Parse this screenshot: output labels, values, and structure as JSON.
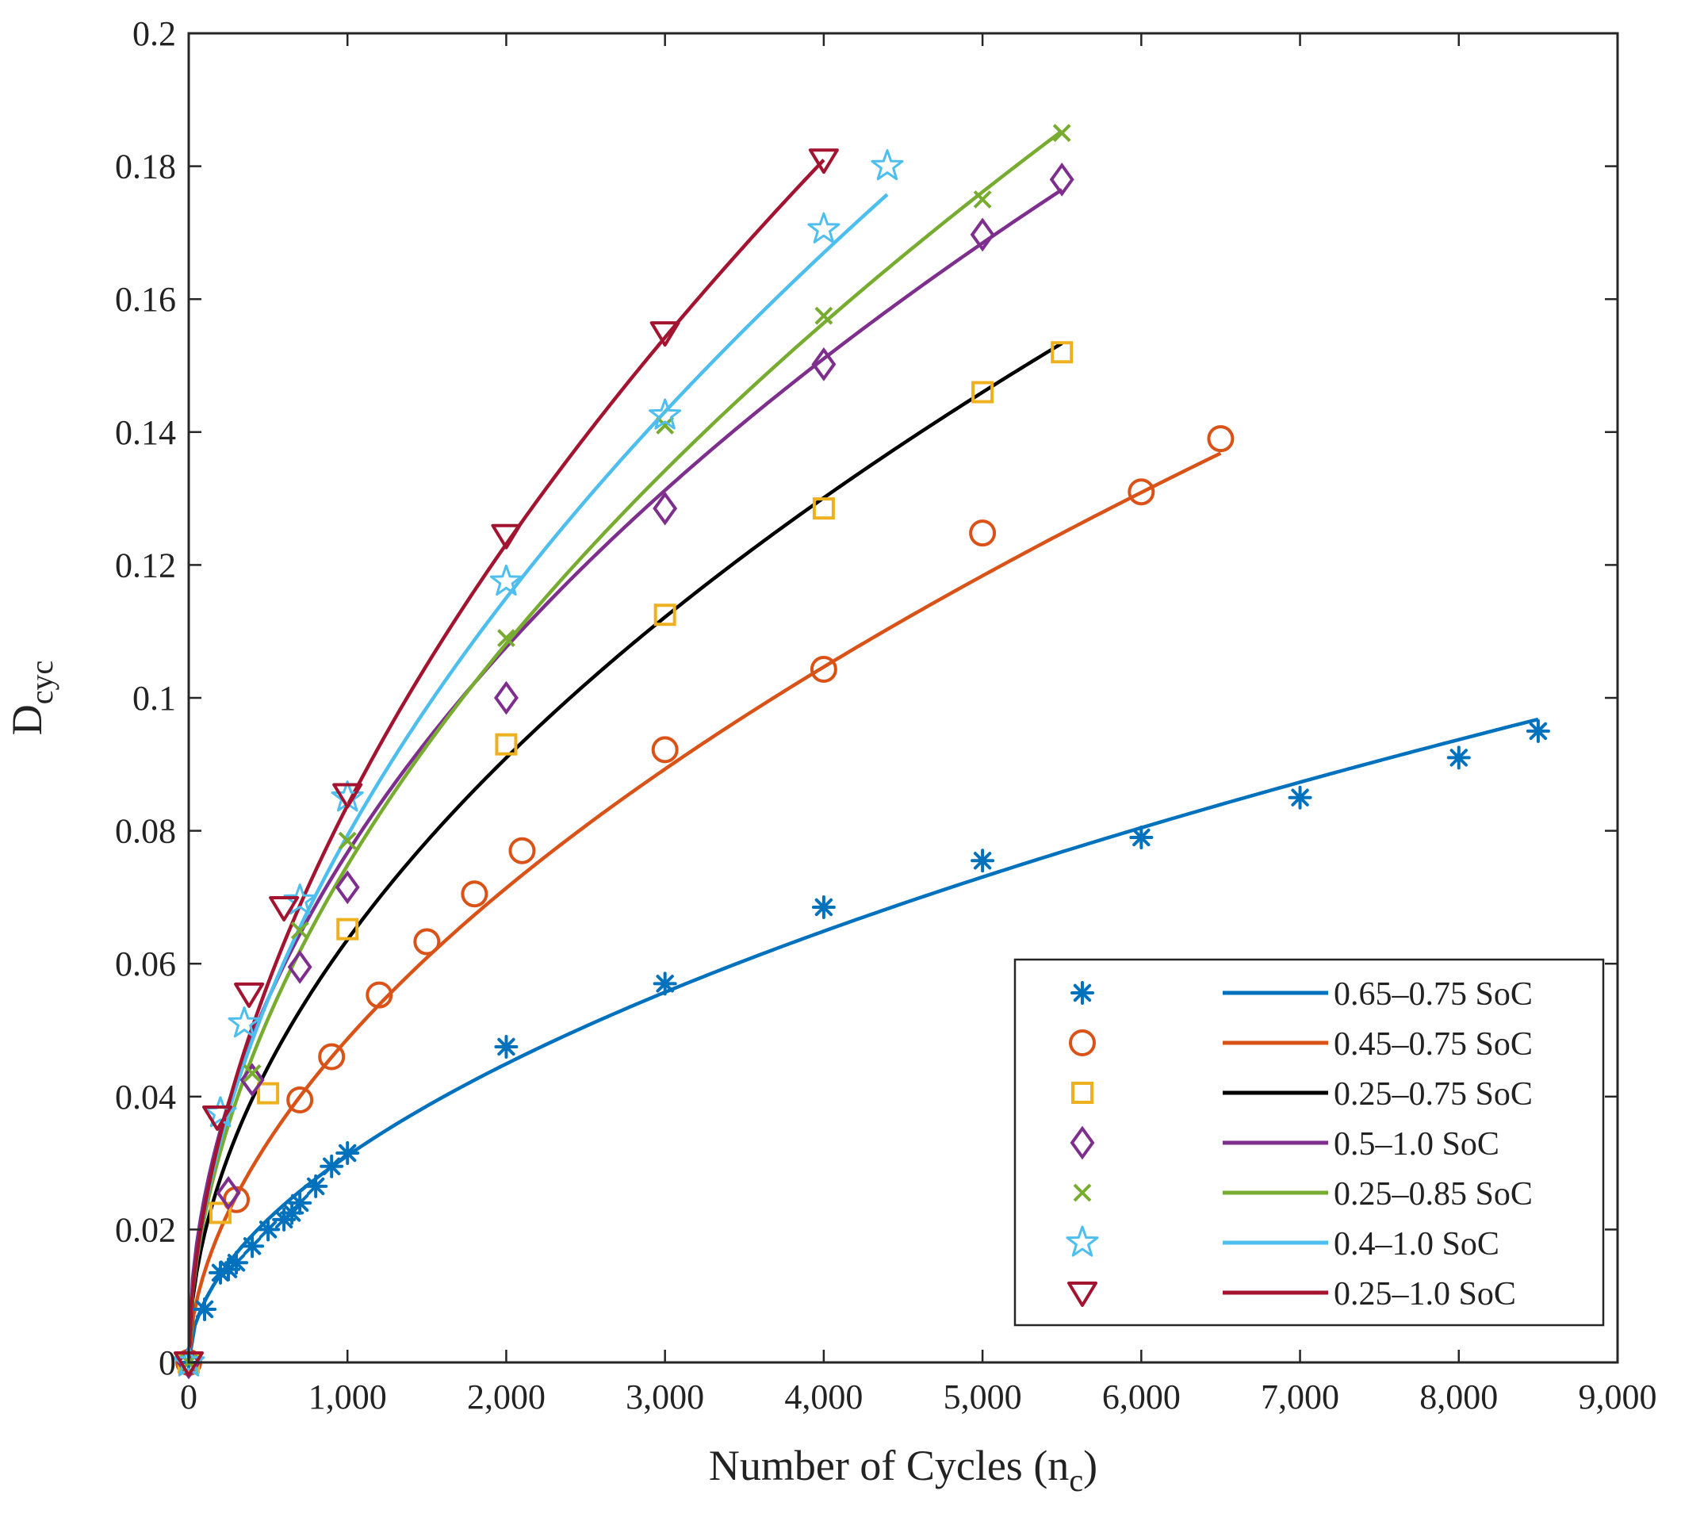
{
  "chart_data": {
    "type": "scatter",
    "title": "",
    "xlabel": "Number of Cycles (n",
    "xlabel_sub": "c",
    "xlabel_close": ")",
    "ylabel": "D",
    "ylabel_sub": "cyc",
    "xlim": [
      0,
      9000
    ],
    "ylim": [
      0,
      0.2
    ],
    "xticks": [
      0,
      1000,
      2000,
      3000,
      4000,
      5000,
      6000,
      7000,
      8000,
      9000
    ],
    "xtick_labels": [
      "0",
      "1,000",
      "2,000",
      "3,000",
      "4,000",
      "5,000",
      "6,000",
      "7,000",
      "8,000",
      "9,000"
    ],
    "yticks": [
      0,
      0.02,
      0.04,
      0.06,
      0.08,
      0.1,
      0.12,
      0.14,
      0.16,
      0.18,
      0.2
    ],
    "ytick_labels": [
      "0",
      "0.02",
      "0.04",
      "0.06",
      "0.08",
      "0.1",
      "0.12",
      "0.14",
      "0.16",
      "0.18",
      "0.2"
    ],
    "grid": false,
    "legend_position": "bottom-right",
    "series": [
      {
        "name": "0.65–0.75 SoC",
        "color": "#0072BD",
        "marker": "asterisk",
        "fit": {
          "a": 0.000798,
          "b": 0.5303,
          "xmax": 8500
        },
        "points": [
          [
            0,
            0
          ],
          [
            100,
            0.008
          ],
          [
            200,
            0.0135
          ],
          [
            250,
            0.014
          ],
          [
            300,
            0.015
          ],
          [
            400,
            0.0175
          ],
          [
            500,
            0.02
          ],
          [
            600,
            0.0215
          ],
          [
            650,
            0.0225
          ],
          [
            700,
            0.024
          ],
          [
            800,
            0.0265
          ],
          [
            900,
            0.0295
          ],
          [
            1000,
            0.0315
          ],
          [
            2000,
            0.0475
          ],
          [
            3000,
            0.057
          ],
          [
            4000,
            0.0685
          ],
          [
            5000,
            0.0755
          ],
          [
            6000,
            0.079
          ],
          [
            7000,
            0.085
          ],
          [
            8000,
            0.091
          ],
          [
            8500,
            0.095
          ]
        ]
      },
      {
        "name": "0.45–0.75 SoC",
        "color": "#D95319",
        "marker": "circle",
        "fit": {
          "a": 0.001075,
          "b": 0.552,
          "xmax": 6500
        },
        "points": [
          [
            0,
            0
          ],
          [
            300,
            0.0245
          ],
          [
            700,
            0.0395
          ],
          [
            900,
            0.046
          ],
          [
            1200,
            0.0553
          ],
          [
            1500,
            0.0633
          ],
          [
            1800,
            0.0705
          ],
          [
            2100,
            0.077
          ],
          [
            3000,
            0.0922
          ],
          [
            4000,
            0.1043
          ],
          [
            5000,
            0.1248
          ],
          [
            6000,
            0.131
          ],
          [
            6500,
            0.139
          ]
        ]
      },
      {
        "name": "0.25–0.75 SoC",
        "color": "#EDB120",
        "line_color": "#000000",
        "marker": "square",
        "fit": {
          "a": 0.0018,
          "b": 0.5161,
          "xmax": 5500
        },
        "points": [
          [
            0,
            0
          ],
          [
            200,
            0.0225
          ],
          [
            500,
            0.0405
          ],
          [
            1000,
            0.0652
          ],
          [
            2000,
            0.093
          ],
          [
            3000,
            0.1125
          ],
          [
            4000,
            0.1285
          ],
          [
            5000,
            0.146
          ],
          [
            5500,
            0.152
          ]
        ]
      },
      {
        "name": "0.5–1.0 SoC",
        "color": "#7E2F8E",
        "marker": "diamond",
        "fit": {
          "a": 0.002625,
          "b": 0.4886,
          "xmax": 5500
        },
        "points": [
          [
            0,
            0
          ],
          [
            250,
            0.0255
          ],
          [
            400,
            0.0425
          ],
          [
            700,
            0.0595
          ],
          [
            1000,
            0.0715
          ],
          [
            2000,
            0.1
          ],
          [
            3000,
            0.1285
          ],
          [
            4000,
            0.1502
          ],
          [
            5000,
            0.1697
          ],
          [
            5500,
            0.178
          ]
        ]
      },
      {
        "name": "0.25–0.85 SoC",
        "color": "#77AC30",
        "marker": "cross",
        "fit": {
          "a": 0.001895,
          "b": 0.5321,
          "xmax": 5500
        },
        "points": [
          [
            0,
            0
          ],
          [
            400,
            0.0435
          ],
          [
            700,
            0.065
          ],
          [
            1000,
            0.0785
          ],
          [
            2000,
            0.109
          ],
          [
            3000,
            0.141
          ],
          [
            4000,
            0.1575
          ],
          [
            5000,
            0.175
          ],
          [
            5500,
            0.185
          ]
        ]
      },
      {
        "name": "0.4–1.0 SoC",
        "color": "#4DBEEE",
        "marker": "star",
        "fit": {
          "a": 0.001936,
          "b": 0.5374,
          "xmax": 4400
        },
        "points": [
          [
            0,
            0
          ],
          [
            200,
            0.0375
          ],
          [
            350,
            0.051
          ],
          [
            700,
            0.0695
          ],
          [
            1000,
            0.085
          ],
          [
            2000,
            0.1175
          ],
          [
            3000,
            0.1425
          ],
          [
            4000,
            0.1705
          ],
          [
            4400,
            0.18
          ]
        ]
      },
      {
        "name": "0.25–1.0 SoC",
        "color": "#A2142F",
        "marker": "triangle-down",
        "fit": {
          "a": 0.00181,
          "b": 0.5552,
          "xmax": 4000
        },
        "points": [
          [
            0,
            0
          ],
          [
            180,
            0.037
          ],
          [
            380,
            0.0555
          ],
          [
            600,
            0.0685
          ],
          [
            1000,
            0.0855
          ],
          [
            2000,
            0.1245
          ],
          [
            3000,
            0.155
          ],
          [
            4000,
            0.181
          ]
        ]
      }
    ]
  }
}
